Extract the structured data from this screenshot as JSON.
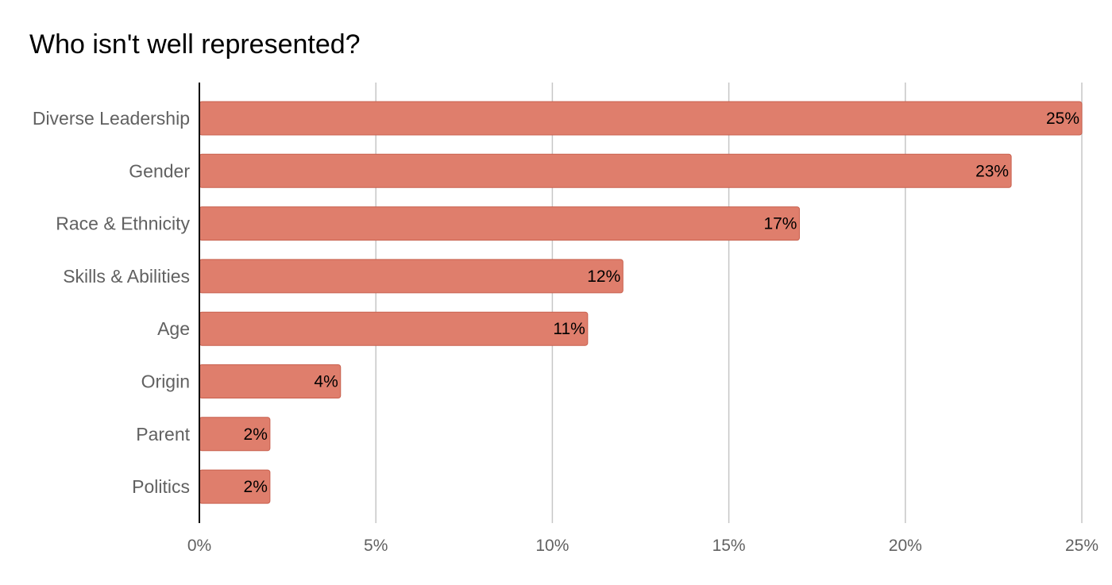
{
  "chart_data": {
    "type": "bar",
    "orientation": "horizontal",
    "title": "Who isn't well represented?",
    "categories": [
      "Diverse Leadership",
      "Gender",
      "Race & Ethnicity",
      "Skills & Abilities",
      "Age",
      "Origin",
      "Parent",
      "Politics"
    ],
    "values": [
      25,
      23,
      17,
      12,
      11,
      4,
      2,
      2
    ],
    "value_labels": [
      "25%",
      "23%",
      "17%",
      "12%",
      "11%",
      "4%",
      "2%",
      "2%"
    ],
    "x_ticks": [
      0,
      5,
      10,
      15,
      20,
      25
    ],
    "x_tick_labels": [
      "0%",
      "5%",
      "10%",
      "15%",
      "20%",
      "25%"
    ],
    "xlim": [
      0,
      25
    ],
    "xlabel": "",
    "ylabel": "",
    "grid": true,
    "legend": "none",
    "colors": {
      "bar": "#DF7E6C",
      "bar_border": "#C8604E",
      "grid": "#C6C6C6",
      "axis": "#000000"
    }
  }
}
